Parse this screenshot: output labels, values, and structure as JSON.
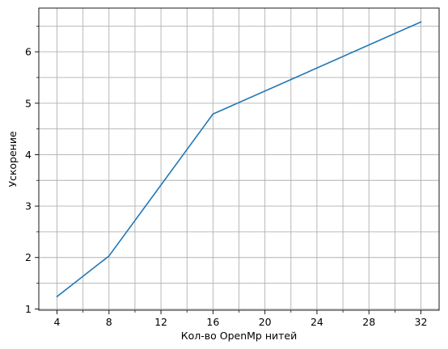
{
  "chart_data": {
    "type": "line",
    "title": "",
    "xlabel": "Кол-во OpenMp нитей",
    "ylabel": "Ускорение",
    "x": [
      4,
      8,
      16,
      32
    ],
    "series": [
      {
        "values": [
          1.24,
          2.03,
          4.79,
          6.58
        ],
        "color": "#1f77b4"
      }
    ],
    "xlim": [
      2.6,
      33.4
    ],
    "ylim": [
      0.975,
      6.85
    ],
    "x_ticks": [
      4,
      8,
      12,
      16,
      20,
      24,
      28,
      32
    ],
    "x_tick_labels": [
      "4",
      "8",
      "12",
      "16",
      "20",
      "24",
      "28",
      "32"
    ],
    "x_minor_ticks": [
      6,
      10,
      14,
      18,
      22,
      26,
      30
    ],
    "y_ticks": [
      1,
      2,
      3,
      4,
      5,
      6
    ],
    "y_tick_labels": [
      "1",
      "2",
      "3",
      "4",
      "5",
      "6"
    ],
    "y_minor_ticks": [
      1.5,
      2.5,
      3.5,
      4.5,
      5.5,
      6.5
    ],
    "grid": true,
    "grid_minor": true,
    "grid_color": "#b0b0b0",
    "legend": false
  }
}
